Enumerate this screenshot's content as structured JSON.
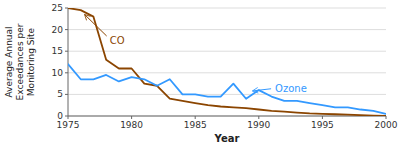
{
  "chart_data": {
    "type": "line",
    "xlabel": "Year",
    "ylabel": "Average Annual\nExceedances per\nMonitoring Site",
    "x": [
      1975,
      1976,
      1977,
      1978,
      1979,
      1980,
      1981,
      1982,
      1983,
      1984,
      1985,
      1986,
      1987,
      1988,
      1989,
      1990,
      1991,
      1992,
      1993,
      1994,
      1995,
      1996,
      1997,
      1998,
      1999,
      2000
    ],
    "series": [
      {
        "name": "CO",
        "color": "#8B4500",
        "values": [
          25.0,
          24.5,
          23.0,
          13.0,
          11.0,
          11.0,
          7.5,
          7.0,
          4.0,
          3.5,
          3.0,
          2.5,
          2.2,
          2.0,
          1.8,
          1.5,
          1.2,
          1.0,
          0.8,
          0.6,
          0.5,
          0.4,
          0.3,
          0.2,
          0.1,
          0.0
        ]
      },
      {
        "name": "Ozone",
        "color": "#3399FF",
        "values": [
          12.0,
          8.5,
          8.5,
          9.5,
          8.0,
          9.0,
          8.5,
          7.0,
          8.5,
          5.0,
          5.0,
          4.5,
          4.5,
          7.5,
          4.0,
          6.0,
          4.5,
          3.5,
          3.5,
          3.0,
          2.5,
          2.0,
          2.0,
          1.5,
          1.2,
          0.5
        ]
      }
    ],
    "xlim": [
      1975,
      2000
    ],
    "ylim": [
      0,
      25
    ],
    "xticks": [
      1975,
      1980,
      1985,
      1990,
      1995,
      2000
    ],
    "yticks": [
      0,
      5,
      10,
      15,
      20,
      25
    ],
    "grid": "y",
    "annotations": [
      {
        "text": "CO",
        "x": 1976.3,
        "y": 23.5,
        "text_x": 1978.2,
        "text_y": 17.5,
        "color": "#8B4500"
      },
      {
        "text": "Ozone",
        "x": 1989.5,
        "y": 5.8,
        "text_x": 1991.2,
        "text_y": 6.5,
        "color": "#3399FF"
      }
    ]
  }
}
